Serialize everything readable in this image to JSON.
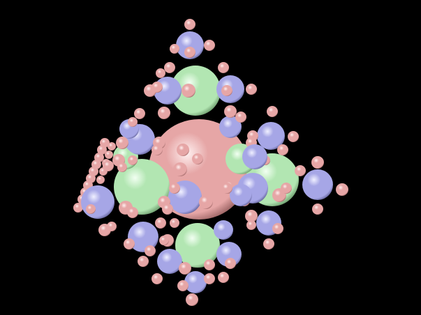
{
  "scene": {
    "subject": "fractal-sphere-cluster",
    "background_color": "#000000",
    "palette": {
      "pink": "#e6a6a6",
      "pink_highlight": "#fff0f0",
      "pink_shadow": "#7a4646",
      "green": "#b2e6b2",
      "green_highlight": "#f2fff2",
      "green_shadow": "#4e7a4e",
      "blue": "#a6a6e6",
      "blue_highlight": "#f0f0ff",
      "blue_shadow": "#46467a"
    }
  }
}
